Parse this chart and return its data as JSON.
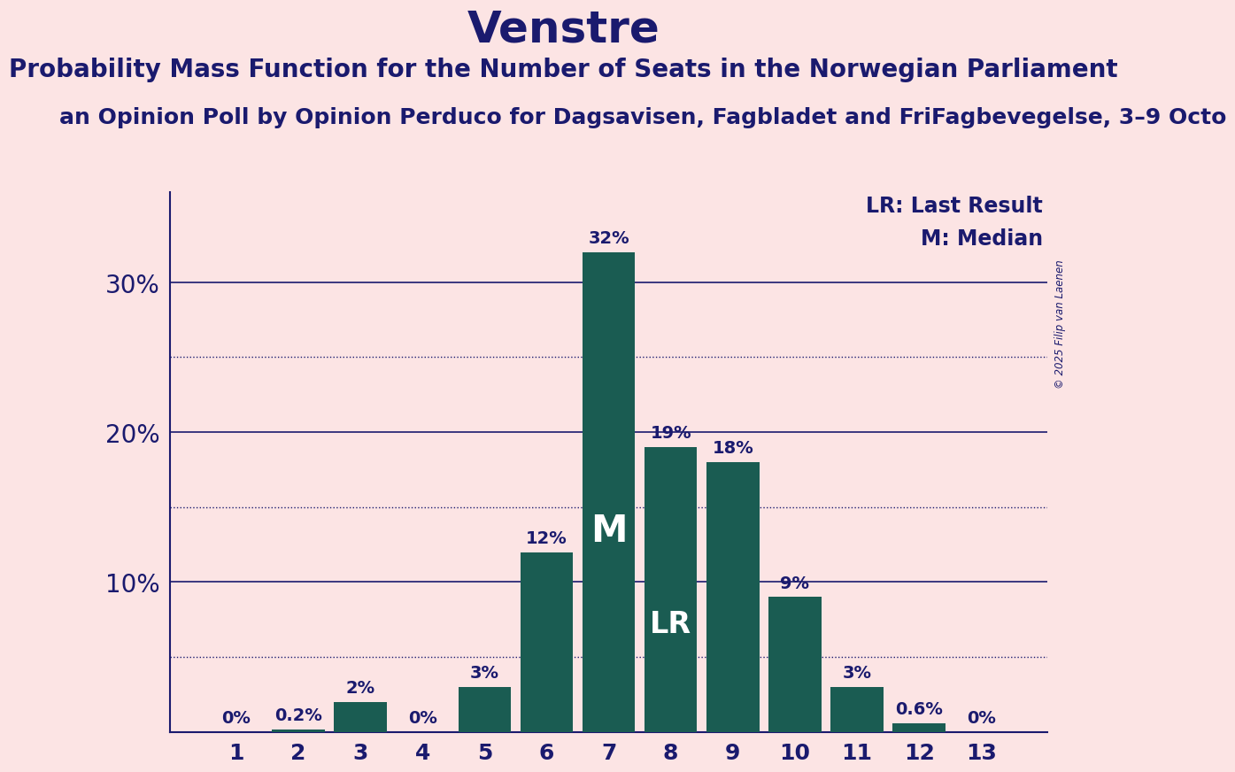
{
  "title": "Venstre",
  "subtitle": "Probability Mass Function for the Number of Seats in the Norwegian Parliament",
  "source_line": "an Opinion Poll by Opinion Perduco for Dagsavisen, Fagbladet and FriFagbevegelse, 3–9 Octo",
  "copyright": "© 2025 Filip van Laenen",
  "categories": [
    1,
    2,
    3,
    4,
    5,
    6,
    7,
    8,
    9,
    10,
    11,
    12,
    13
  ],
  "values": [
    0.0,
    0.2,
    2.0,
    0.0,
    3.0,
    12.0,
    32.0,
    19.0,
    18.0,
    9.0,
    3.0,
    0.6,
    0.0
  ],
  "bar_labels": [
    "0%",
    "0.2%",
    "2%",
    "0%",
    "3%",
    "12%",
    "32%",
    "19%",
    "18%",
    "9%",
    "3%",
    "0.6%",
    "0%"
  ],
  "median_bar": 7,
  "lr_bar": 8,
  "bar_color": "#1a5c52",
  "bg_color": "#fce4e4",
  "text_color": "#1a1a6e",
  "title_fontsize": 36,
  "subtitle_fontsize": 20,
  "source_fontsize": 18,
  "yticks": [
    0,
    10,
    20,
    30
  ],
  "dotted_lines": [
    5,
    15,
    25
  ],
  "ylim": [
    0,
    36
  ],
  "legend_lr": "LR: Last Result",
  "legend_m": "M: Median"
}
